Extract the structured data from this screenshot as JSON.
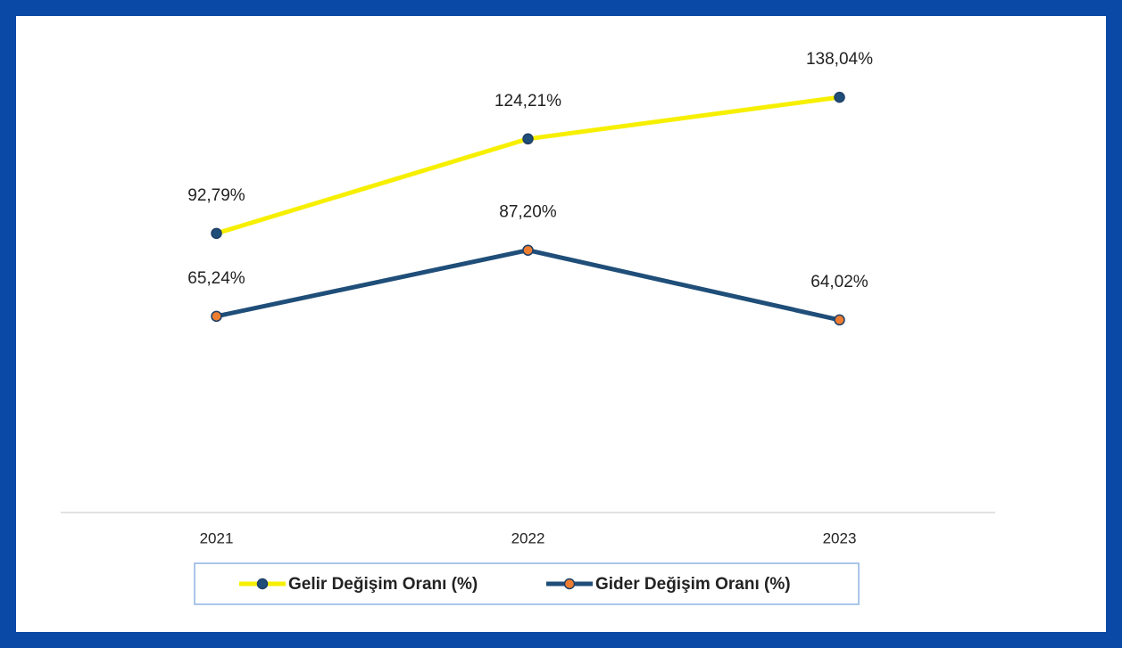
{
  "chart_data": {
    "type": "line",
    "categories": [
      "2021",
      "2022",
      "2023"
    ],
    "series": [
      {
        "name": "Gelir Değişim Oranı (%)",
        "color": "#f7ef00",
        "marker_color": "#1f4e79",
        "values": [
          92.79,
          124.21,
          138.04
        ],
        "value_labels": [
          "92,79%",
          "124,21%",
          "138,04%"
        ]
      },
      {
        "name": "Gider Değişim Oranı (%)",
        "color": "#1f4e79",
        "marker_color": "#ed7d31",
        "values": [
          65.24,
          87.2,
          64.02
        ],
        "value_labels": [
          "65,24%",
          "87,20%",
          "64,02%"
        ]
      }
    ],
    "ylim": [
      0,
      160
    ],
    "legend": "bottom"
  }
}
